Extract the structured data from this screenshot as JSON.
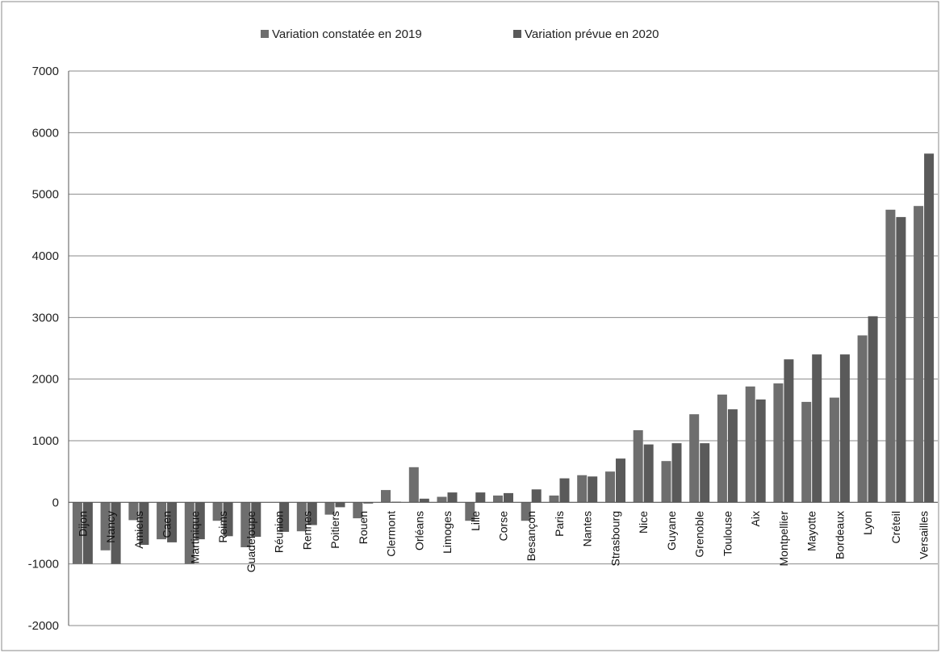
{
  "chart_data": {
    "type": "bar",
    "categories": [
      "Dijon",
      "Nancy",
      "Amiens",
      "Caen",
      "Martinique",
      "Reims",
      "Guadeloupe",
      "Réunion",
      "Rennes",
      "Poitiers",
      "Rouen",
      "Clermont",
      "Orléans",
      "Limoges",
      "Lille",
      "Corse",
      "Besançon",
      "Paris",
      "Nantes",
      "Strasbourg",
      "Nice",
      "Guyane",
      "Grenoble",
      "Toulouse",
      "Aix",
      "Montpellier",
      "Mayotte",
      "Bordeaux",
      "Lyon",
      "Créteil",
      "Versailles"
    ],
    "series": [
      {
        "name": "Variation constatée en 2019",
        "values": [
          -1000,
          -780,
          -290,
          -600,
          -1000,
          -300,
          -730,
          0,
          -470,
          -200,
          -260,
          200,
          570,
          90,
          -300,
          110,
          -300,
          110,
          440,
          500,
          1170,
          670,
          1430,
          1750,
          1880,
          1930,
          1630,
          1700,
          2710,
          4750,
          4810
        ]
      },
      {
        "name": "Variation prévue en 2020",
        "values": [
          -1000,
          -1000,
          -690,
          -650,
          -600,
          -550,
          -560,
          -480,
          -370,
          -80,
          -20,
          10,
          60,
          160,
          160,
          150,
          210,
          390,
          420,
          710,
          940,
          960,
          960,
          1510,
          1670,
          2320,
          2400,
          2400,
          3020,
          4630,
          5660
        ]
      }
    ],
    "ylim": [
      -2000,
      7000
    ],
    "yticks": [
      "7000",
      "6000",
      "5000",
      "4000",
      "3000",
      "2000",
      "1000",
      "0",
      "-1000",
      "-2000"
    ],
    "ytick_values": [
      7000,
      6000,
      5000,
      4000,
      3000,
      2000,
      1000,
      0,
      -1000,
      -2000
    ],
    "grid": true,
    "legend_position": "top-center",
    "colors": {
      "series": [
        "#6e6e6e",
        "#5a5a5a"
      ],
      "grid": "#8a8a8a",
      "axis": "#555555",
      "frame": "#888888"
    }
  }
}
